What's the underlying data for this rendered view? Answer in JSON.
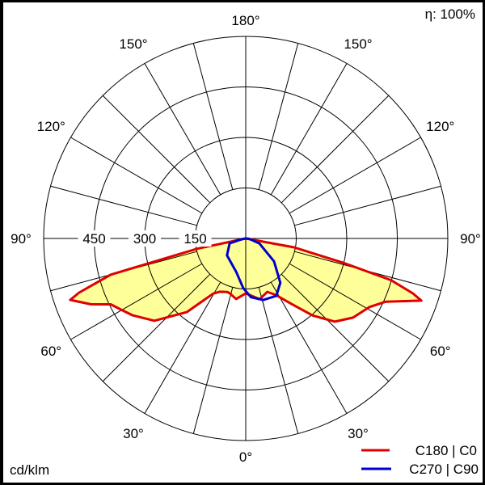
{
  "chart_data": {
    "type": "polar",
    "efficiency_label": "η: 100%",
    "unit_label": "cd/klm",
    "radial_ticks": [
      150,
      300,
      450
    ],
    "radial_max": 600,
    "angle_labels": [
      {
        "angle": 0,
        "label": "0°"
      },
      {
        "angle": 30,
        "label": "30°"
      },
      {
        "angle": -30,
        "label": "30°"
      },
      {
        "angle": 60,
        "label": "60°"
      },
      {
        "angle": -60,
        "label": "60°"
      },
      {
        "angle": 90,
        "label": "90°"
      },
      {
        "angle": -90,
        "label": "90°"
      },
      {
        "angle": 120,
        "label": "120°"
      },
      {
        "angle": -120,
        "label": "120°"
      },
      {
        "angle": 150,
        "label": "150°"
      },
      {
        "angle": -150,
        "label": "150°"
      },
      {
        "angle": 180,
        "label": "180°"
      }
    ],
    "angle_grid_step": 15,
    "grid": true,
    "legend_position": "bottom-right",
    "fill_color": "#ffff99",
    "series": [
      {
        "name": "C180 | C0",
        "color": "#e00000",
        "points": [
          [
            -90,
            0
          ],
          [
            -78,
            147
          ],
          [
            -75,
            415
          ],
          [
            -72,
            520
          ],
          [
            -70.7,
            552
          ],
          [
            -67,
            500
          ],
          [
            -64,
            446
          ],
          [
            -60,
            425
          ],
          [
            -55.8,
            406
          ],
          [
            -48,
            365
          ],
          [
            -38.7,
            280
          ],
          [
            -30.5,
            190
          ],
          [
            -26,
            176
          ],
          [
            -19,
            168
          ],
          [
            -16,
            170
          ],
          [
            -9,
            182
          ],
          [
            0,
            163
          ],
          [
            13,
            185
          ],
          [
            22,
            171
          ],
          [
            28,
            190
          ],
          [
            35,
            238
          ],
          [
            41,
            303
          ],
          [
            47,
            362
          ],
          [
            53.6,
            396
          ],
          [
            61,
            420
          ],
          [
            65.7,
            456
          ],
          [
            70.5,
            553
          ],
          [
            71.8,
            523
          ],
          [
            74,
            449
          ],
          [
            76,
            297
          ],
          [
            79.6,
            146
          ],
          [
            90,
            0
          ]
        ]
      },
      {
        "name": "C270 | C90",
        "color": "#0000cc",
        "points": [
          [
            -90,
            0
          ],
          [
            -80,
            12
          ],
          [
            -73,
            50
          ],
          [
            -48,
            75
          ],
          [
            -16,
            103
          ],
          [
            -3,
            147
          ],
          [
            5,
            175
          ],
          [
            16,
            190
          ],
          [
            28,
            193
          ],
          [
            38,
            167
          ],
          [
            51,
            108
          ],
          [
            70,
            43
          ],
          [
            85,
            10
          ],
          [
            90,
            0
          ]
        ]
      }
    ]
  }
}
